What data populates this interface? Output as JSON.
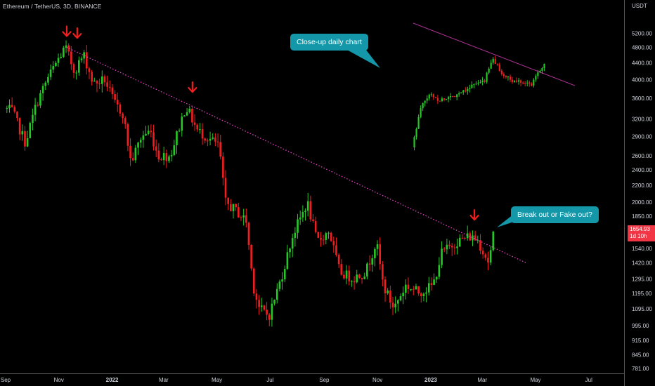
{
  "title": "Ethereum / TetherUS, 3D, BINANCE",
  "price_unit": "USDT",
  "current_price": "1654.93",
  "countdown": "1d 10h",
  "callouts": {
    "closeup": "Close-up daily chart",
    "breakout": "Break out or Fake out?"
  },
  "colors": {
    "background": "#000000",
    "up": "#26c826",
    "down": "#f01e1e",
    "trendline": "#e040c0",
    "callout": "#1497a8",
    "arrow": "#f01e1e",
    "price_tag": "#f23645"
  },
  "chart_data": [
    {
      "type": "candlestick",
      "title": "",
      "y_scale": "log",
      "ylim": [
        760,
        6150
      ],
      "y_ticks": [
        "5200.00",
        "4800.00",
        "4400.00",
        "4000.00",
        "3600.00",
        "3200.00",
        "2900.00",
        "2600.00",
        "2400.00",
        "2200.00",
        "2000.00",
        "1850.00",
        "1700.00",
        "1540.00",
        "1420.00",
        "1295.00",
        "1195.00",
        "1095.00",
        "995.00",
        "915.00",
        "845.00",
        "781.00"
      ],
      "x_ticks": [
        "Sep",
        "Nov",
        "2022",
        "Mar",
        "May",
        "Jul",
        "Sep",
        "Nov",
        "2023",
        "Mar",
        "May",
        "Jul"
      ],
      "close_path": [
        [
          "2021-09-01",
          3400
        ],
        [
          "2021-09-10",
          3350
        ],
        [
          "2021-09-25",
          2800
        ],
        [
          "2021-10-08",
          3500
        ],
        [
          "2021-10-20",
          4000
        ],
        [
          "2021-11-02",
          4500
        ],
        [
          "2021-11-10",
          4800
        ],
        [
          "2021-11-20",
          4200
        ],
        [
          "2021-12-01",
          4600
        ],
        [
          "2021-12-12",
          3900
        ],
        [
          "2021-12-25",
          4000
        ],
        [
          "2022-01-05",
          3500
        ],
        [
          "2022-01-15",
          3300
        ],
        [
          "2022-01-24",
          2500
        ],
        [
          "2022-02-05",
          2900
        ],
        [
          "2022-02-15",
          3000
        ],
        [
          "2022-02-24",
          2600
        ],
        [
          "2022-03-10",
          2600
        ],
        [
          "2022-03-28",
          3450
        ],
        [
          "2022-04-10",
          3000
        ],
        [
          "2022-04-25",
          2850
        ],
        [
          "2022-05-05",
          2750
        ],
        [
          "2022-05-12",
          2000
        ],
        [
          "2022-05-25",
          1900
        ],
        [
          "2022-06-05",
          1800
        ],
        [
          "2022-06-13",
          1250
        ],
        [
          "2022-06-20",
          1100
        ],
        [
          "2022-07-01",
          1050
        ],
        [
          "2022-07-15",
          1300
        ],
        [
          "2022-07-28",
          1650
        ],
        [
          "2022-08-14",
          2000
        ],
        [
          "2022-08-25",
          1600
        ],
        [
          "2022-09-08",
          1700
        ],
        [
          "2022-09-20",
          1350
        ],
        [
          "2022-10-05",
          1300
        ],
        [
          "2022-10-20",
          1350
        ],
        [
          "2022-11-01",
          1600
        ],
        [
          "2022-11-09",
          1250
        ],
        [
          "2022-11-21",
          1100
        ],
        [
          "2022-12-05",
          1250
        ],
        [
          "2022-12-20",
          1200
        ],
        [
          "2023-01-05",
          1250
        ],
        [
          "2023-01-15",
          1500
        ],
        [
          "2023-02-01",
          1600
        ],
        [
          "2023-02-15",
          1650
        ],
        [
          "2023-02-25",
          1620
        ],
        [
          "2023-03-10",
          1420
        ],
        [
          "2023-03-15",
          1650
        ]
      ],
      "trendline": {
        "start": [
          "2021-11-10",
          4800
        ],
        "end": [
          "2023-04-20",
          1420
        ]
      },
      "markers": [
        {
          "date": "2021-11-10",
          "price": 4800
        },
        {
          "date": "2021-11-22",
          "price": 4750
        },
        {
          "date": "2022-04-03",
          "price": 3500
        },
        {
          "date": "2023-02-20",
          "price": 1700
        }
      ]
    },
    {
      "type": "candlestick",
      "title": "Close-up daily chart",
      "close_path": [
        [
          "2023-03-10",
          1420
        ],
        [
          "2023-03-14",
          1700
        ],
        [
          "2023-03-18",
          1800
        ],
        [
          "2023-03-22",
          1750
        ],
        [
          "2023-03-28",
          1780
        ],
        [
          "2023-04-01",
          1820
        ],
        [
          "2023-04-06",
          1870
        ],
        [
          "2023-04-11",
          1900
        ],
        [
          "2023-04-15",
          2100
        ],
        [
          "2023-04-20",
          1950
        ],
        [
          "2023-04-24",
          1900
        ],
        [
          "2023-04-28",
          1910
        ],
        [
          "2023-05-02",
          1870
        ],
        [
          "2023-05-05",
          1990
        ],
        [
          "2023-05-08",
          2050
        ]
      ]
    }
  ]
}
